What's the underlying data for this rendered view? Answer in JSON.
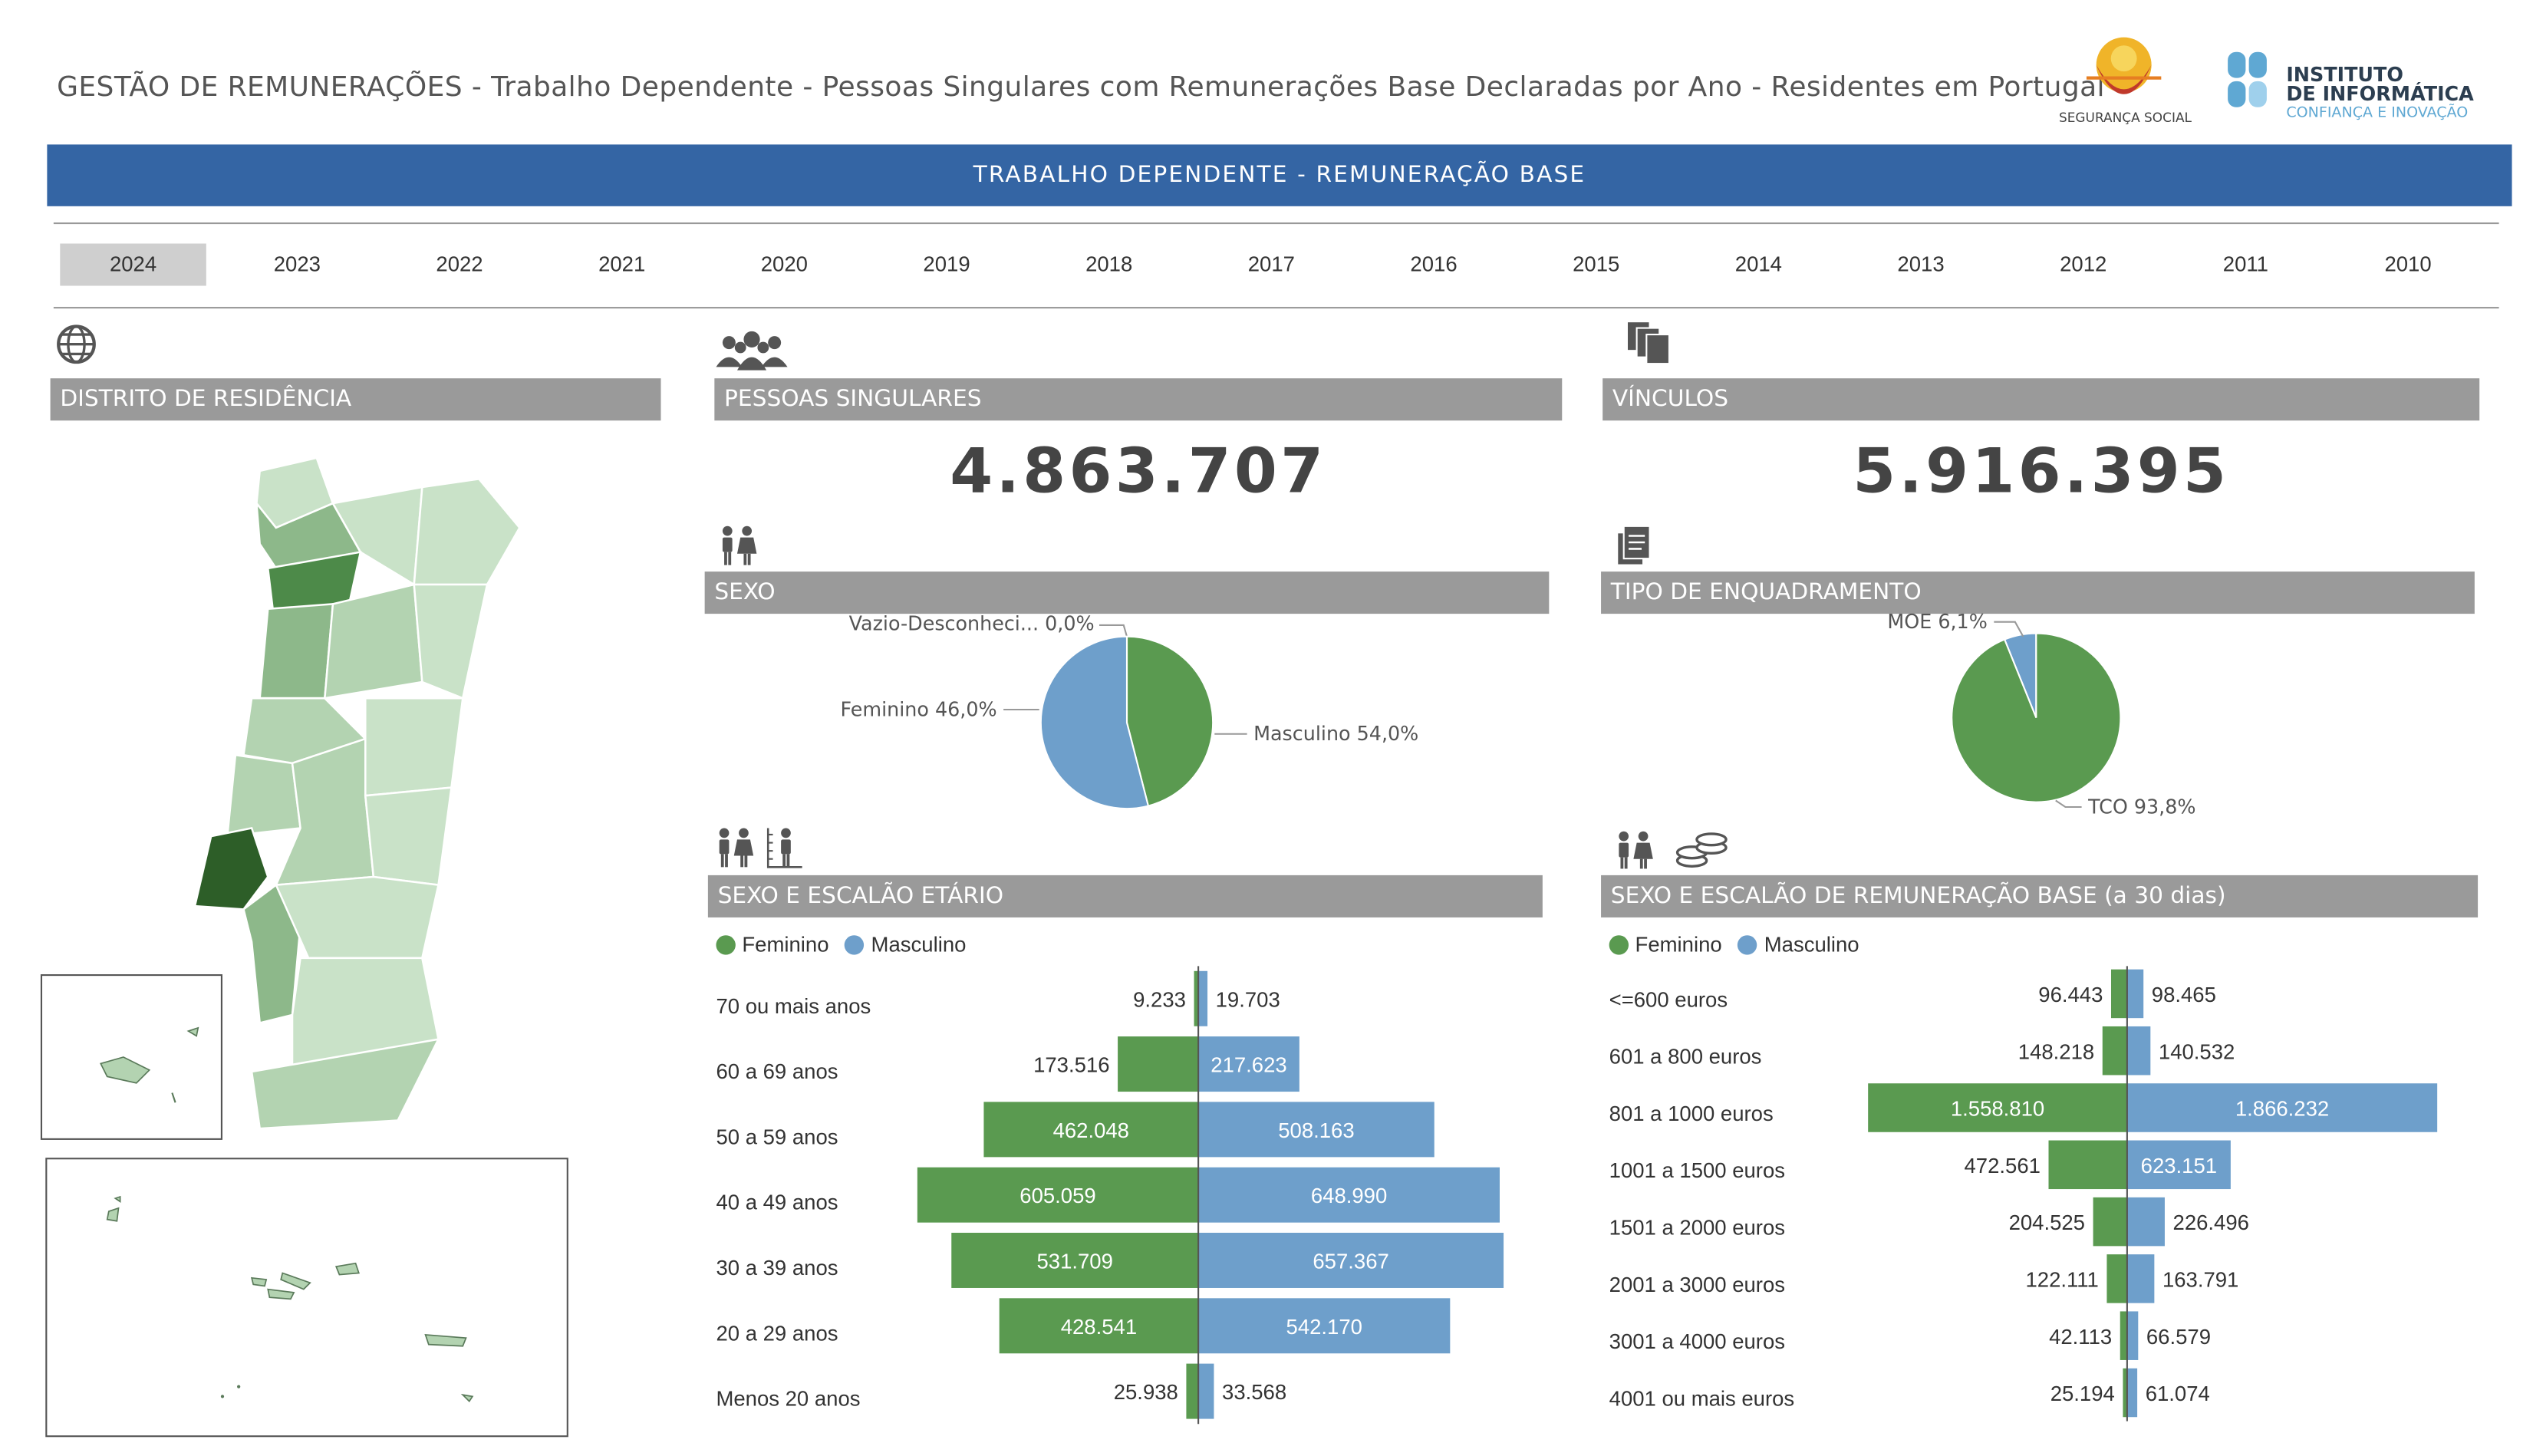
{
  "title": "GESTÃO DE REMUNERAÇÕES - Trabalho Dependente - Pessoas Singulares com Remunerações Base Declaradas por Ano - Residentes em Portugal",
  "logos": {
    "seguranca_social": "SEGURANÇA SOCIAL",
    "instituto_line1": "INSTITUTO",
    "instituto_line2": "DE INFORMÁTICA",
    "instituto_tagline": "CONFIANÇA E INOVAÇÃO"
  },
  "banner": "TRABALHO DEPENDENTE - REMUNERAÇÃO BASE",
  "years": [
    "2024",
    "2023",
    "2022",
    "2021",
    "2020",
    "2019",
    "2018",
    "2017",
    "2016",
    "2015",
    "2014",
    "2013",
    "2012",
    "2011",
    "2010"
  ],
  "selected_year": "2024",
  "colors": {
    "feminino": "#5a9a50",
    "masculino": "#6e9fcb",
    "banner": "#3465a4",
    "header": "#9a9a9a"
  },
  "sections": {
    "distrito": "DISTRITO DE RESIDÊNCIA",
    "pessoas": "PESSOAS SINGULARES",
    "vinculos": "VÍNCULOS",
    "sexo": "SEXO",
    "enquadramento": "TIPO DE ENQUADRAMENTO",
    "sexo_etario": "SEXO E ESCALÃO ETÁRIO",
    "sexo_remuneracao": "SEXO E ESCALÃO DE REMUNERAÇÃO BASE (a 30 dias)"
  },
  "kpis": {
    "pessoas_singulares": "4.863.707",
    "vinculos": "5.916.395"
  },
  "legend": {
    "feminino": "Feminino",
    "masculino": "Masculino"
  },
  "chart_data": [
    {
      "id": "sexo",
      "type": "pie",
      "slices": [
        {
          "label": "Vazio-Desconheci... 0,0%",
          "value": 0.0
        },
        {
          "label": "Feminino 46,0%",
          "value": 46.0
        },
        {
          "label": "Masculino 54,0%",
          "value": 54.0
        }
      ]
    },
    {
      "id": "enquadramento",
      "type": "pie",
      "slices": [
        {
          "label": "MOE 6,1%",
          "value": 6.1
        },
        {
          "label": "TCO 93,8%",
          "value": 93.8
        }
      ]
    },
    {
      "id": "etario",
      "type": "bar",
      "categories": [
        "70 ou mais anos",
        "60 a 69 anos",
        "50 a 59 anos",
        "40 a 49 anos",
        "30 a 39 anos",
        "20 a 29 anos",
        "Menos 20 anos"
      ],
      "series": [
        {
          "name": "Feminino",
          "values": [
            9233,
            173516,
            462048,
            605059,
            531709,
            428541,
            25938
          ],
          "labels": [
            "9.233",
            "173.516",
            "462.048",
            "605.059",
            "531.709",
            "428.541",
            "25.938"
          ]
        },
        {
          "name": "Masculino",
          "values": [
            19703,
            217623,
            508163,
            648990,
            657367,
            542170,
            33568
          ],
          "labels": [
            "19.703",
            "217.623",
            "508.163",
            "648.990",
            "657.367",
            "542.170",
            "33.568"
          ]
        }
      ]
    },
    {
      "id": "remuneracao",
      "type": "bar",
      "categories": [
        "<=600 euros",
        "601 a 800 euros",
        "801 a 1000 euros",
        "1001 a 1500 euros",
        "1501 a 2000 euros",
        "2001 a 3000 euros",
        "3001 a 4000 euros",
        "4001 ou mais euros"
      ],
      "series": [
        {
          "name": "Feminino",
          "values": [
            96443,
            148218,
            1558810,
            472561,
            204525,
            122111,
            42113,
            25194
          ],
          "labels": [
            "96.443",
            "148.218",
            "1.558.810",
            "472.561",
            "204.525",
            "122.111",
            "42.113",
            "25.194"
          ]
        },
        {
          "name": "Masculino",
          "values": [
            98465,
            140532,
            1866232,
            623151,
            226496,
            163791,
            66579,
            61074
          ],
          "labels": [
            "98.465",
            "140.532",
            "1.866.232",
            "623.151",
            "226.496",
            "163.791",
            "66.579",
            "61.074"
          ]
        }
      ]
    }
  ]
}
